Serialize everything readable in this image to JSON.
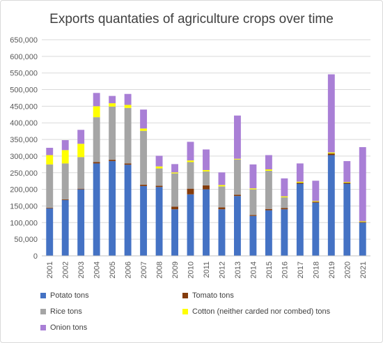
{
  "chart_data": {
    "type": "bar",
    "stacked": true,
    "title": "Exports quantaties of agriculture crops over time",
    "xlabel": "",
    "ylabel": "",
    "ylim": [
      0,
      650000
    ],
    "yticks": [
      "0",
      "50,000",
      "100,000",
      "150,000",
      "200,000",
      "250,000",
      "300,000",
      "350,000",
      "400,000",
      "450,000",
      "500,000",
      "550,000",
      "600,000",
      "650,000"
    ],
    "grid": true,
    "legend_position": "bottom",
    "categories": [
      "2001",
      "2002",
      "2003",
      "2004",
      "2005",
      "2006",
      "2007",
      "2008",
      "2009",
      "2010",
      "2011",
      "2012",
      "2013",
      "2014",
      "2015",
      "2016",
      "2017",
      "2018",
      "2019",
      "2020",
      "2021"
    ],
    "series": [
      {
        "name": "Potato tons",
        "color": "#4472C4",
        "values": [
          143000,
          168000,
          200000,
          278000,
          285000,
          274000,
          210000,
          207000,
          140000,
          185000,
          200000,
          140000,
          180000,
          120000,
          137000,
          140000,
          217000,
          160000,
          303000,
          217000,
          100000
        ]
      },
      {
        "name": "Tomato tons",
        "color": "#843C0C",
        "values": [
          2000,
          2000,
          2000,
          4000,
          4000,
          4000,
          4000,
          4000,
          8000,
          17000,
          12000,
          6000,
          4000,
          3000,
          4000,
          4000,
          3000,
          3000,
          5000,
          3000,
          2000
        ]
      },
      {
        "name": "Rice tons",
        "color": "#A5A5A5",
        "values": [
          130000,
          108000,
          95000,
          135000,
          160000,
          167000,
          162000,
          52000,
          100000,
          80000,
          42000,
          63000,
          106000,
          77000,
          115000,
          32000,
          0,
          0,
          0,
          0,
          0
        ]
      },
      {
        "name": "Cotton (neither carded nor combed) tons",
        "color": "#FFFF00",
        "values": [
          28000,
          40000,
          40000,
          33000,
          10000,
          9000,
          7000,
          6000,
          3000,
          5000,
          4000,
          4000,
          2000,
          3000,
          4000,
          3000,
          3000,
          2000,
          3000,
          2000,
          2000
        ]
      },
      {
        "name": "Onion tons",
        "color": "#A97FD6",
        "values": [
          22000,
          30000,
          42000,
          40000,
          22000,
          33000,
          57000,
          32000,
          25000,
          56000,
          62000,
          38000,
          130000,
          72000,
          43000,
          54000,
          55000,
          61000,
          235000,
          63000,
          223000
        ]
      }
    ]
  }
}
